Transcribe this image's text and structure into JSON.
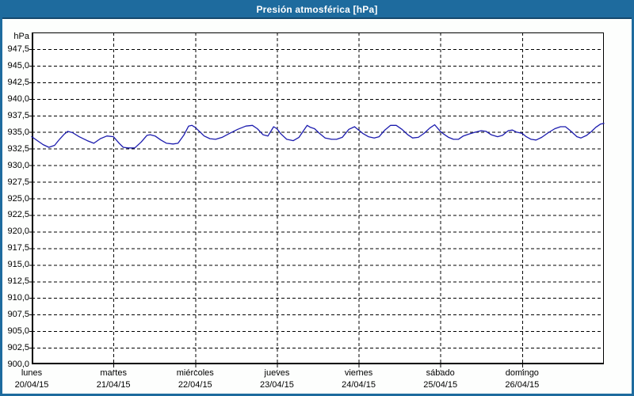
{
  "header": {
    "title": "Presión atmosférica [hPa]"
  },
  "colors": {
    "frame_blue": "#1e6b9e",
    "frame_dark_blue": "#15486d",
    "line_blue": "#1c1cae",
    "grid": "#000000",
    "plot_background": "#ffffff",
    "window_background": "#fdfefd",
    "title_text": "#ffffff"
  },
  "chart_data": {
    "type": "line",
    "title": "Presión atmosférica [hPa]",
    "ylabel": "hPa",
    "xlabel": "",
    "ylim": [
      900,
      950
    ],
    "ytick_step": 2.5,
    "grid": true,
    "grid_style": "dashed",
    "legend": false,
    "decimal_separator": ",",
    "yticks": [
      {
        "v": 947.5,
        "label": "947,5"
      },
      {
        "v": 945.0,
        "label": "945,0"
      },
      {
        "v": 942.5,
        "label": "942,5"
      },
      {
        "v": 940.0,
        "label": "940,0"
      },
      {
        "v": 937.5,
        "label": "937,5"
      },
      {
        "v": 935.0,
        "label": "935,0"
      },
      {
        "v": 932.5,
        "label": "932,5"
      },
      {
        "v": 930.0,
        "label": "930,0"
      },
      {
        "v": 927.5,
        "label": "927,5"
      },
      {
        "v": 925.0,
        "label": "925,0"
      },
      {
        "v": 922.5,
        "label": "922,5"
      },
      {
        "v": 920.0,
        "label": "920,0"
      },
      {
        "v": 917.5,
        "label": "917,5"
      },
      {
        "v": 915.0,
        "label": "915,0"
      },
      {
        "v": 912.5,
        "label": "912,5"
      },
      {
        "v": 910.0,
        "label": "910,0"
      },
      {
        "v": 907.5,
        "label": "907,5"
      },
      {
        "v": 905.0,
        "label": "905,0"
      },
      {
        "v": 902.5,
        "label": "902,5"
      },
      {
        "v": 900.0,
        "label": "900,0"
      }
    ],
    "xticks": [
      {
        "day": "lunes",
        "date": "20/04/15"
      },
      {
        "day": "martes",
        "date": "21/04/15"
      },
      {
        "day": "miércoles",
        "date": "22/04/15"
      },
      {
        "day": "jueves",
        "date": "23/04/15"
      },
      {
        "day": "viernes",
        "date": "24/04/15"
      },
      {
        "day": "sábado",
        "date": "25/04/15"
      },
      {
        "day": "domingo",
        "date": "26/04/15"
      }
    ],
    "x_span_days": 7,
    "series": [
      {
        "name": "Presión atmosférica",
        "color": "#1c1cae",
        "x_unit": "days_from_2015-04-20",
        "points": [
          [
            0.0,
            934.3
          ],
          [
            0.07,
            933.7
          ],
          [
            0.14,
            933.1
          ],
          [
            0.21,
            932.7
          ],
          [
            0.28,
            933.0
          ],
          [
            0.34,
            933.9
          ],
          [
            0.4,
            934.7
          ],
          [
            0.44,
            935.1
          ],
          [
            0.5,
            934.9
          ],
          [
            0.58,
            934.3
          ],
          [
            0.68,
            933.7
          ],
          [
            0.76,
            933.3
          ],
          [
            0.84,
            934.0
          ],
          [
            0.92,
            934.4
          ],
          [
            1.0,
            934.3
          ],
          [
            1.07,
            933.3
          ],
          [
            1.12,
            932.7
          ],
          [
            1.18,
            932.6
          ],
          [
            1.26,
            932.6
          ],
          [
            1.34,
            933.5
          ],
          [
            1.41,
            934.5
          ],
          [
            1.45,
            934.6
          ],
          [
            1.51,
            934.4
          ],
          [
            1.58,
            933.8
          ],
          [
            1.65,
            933.3
          ],
          [
            1.73,
            933.2
          ],
          [
            1.79,
            933.3
          ],
          [
            1.86,
            934.5
          ],
          [
            1.92,
            935.9
          ],
          [
            1.96,
            936.0
          ],
          [
            2.0,
            935.7
          ],
          [
            2.06,
            935.0
          ],
          [
            2.11,
            934.4
          ],
          [
            2.18,
            934.0
          ],
          [
            2.25,
            933.9
          ],
          [
            2.33,
            934.2
          ],
          [
            2.42,
            934.8
          ],
          [
            2.52,
            935.4
          ],
          [
            2.62,
            935.9
          ],
          [
            2.7,
            936.0
          ],
          [
            2.76,
            935.5
          ],
          [
            2.83,
            934.6
          ],
          [
            2.89,
            934.4
          ],
          [
            2.96,
            935.8
          ],
          [
            3.0,
            935.5
          ],
          [
            3.05,
            934.7
          ],
          [
            3.12,
            933.9
          ],
          [
            3.2,
            933.7
          ],
          [
            3.27,
            934.2
          ],
          [
            3.33,
            935.3
          ],
          [
            3.37,
            936.0
          ],
          [
            3.41,
            935.7
          ],
          [
            3.46,
            935.5
          ],
          [
            3.52,
            934.8
          ],
          [
            3.59,
            934.1
          ],
          [
            3.67,
            933.9
          ],
          [
            3.73,
            933.9
          ],
          [
            3.8,
            934.2
          ],
          [
            3.88,
            935.4
          ],
          [
            3.95,
            935.8
          ],
          [
            4.0,
            935.3
          ],
          [
            4.05,
            934.8
          ],
          [
            4.12,
            934.3
          ],
          [
            4.19,
            934.1
          ],
          [
            4.25,
            934.3
          ],
          [
            4.32,
            935.3
          ],
          [
            4.39,
            936.0
          ],
          [
            4.46,
            936.0
          ],
          [
            4.53,
            935.4
          ],
          [
            4.6,
            934.6
          ],
          [
            4.66,
            934.1
          ],
          [
            4.73,
            934.2
          ],
          [
            4.8,
            934.8
          ],
          [
            4.87,
            935.6
          ],
          [
            4.93,
            936.1
          ],
          [
            5.0,
            935.1
          ],
          [
            5.04,
            934.7
          ],
          [
            5.1,
            934.2
          ],
          [
            5.16,
            933.9
          ],
          [
            5.22,
            933.9
          ],
          [
            5.28,
            934.4
          ],
          [
            5.35,
            934.7
          ],
          [
            5.43,
            935.0
          ],
          [
            5.5,
            935.2
          ],
          [
            5.56,
            935.1
          ],
          [
            5.62,
            934.6
          ],
          [
            5.7,
            934.3
          ],
          [
            5.76,
            934.5
          ],
          [
            5.83,
            935.2
          ],
          [
            5.88,
            935.3
          ],
          [
            5.93,
            935.0
          ],
          [
            6.0,
            934.8
          ],
          [
            6.05,
            934.3
          ],
          [
            6.11,
            933.9
          ],
          [
            6.17,
            933.8
          ],
          [
            6.24,
            934.2
          ],
          [
            6.32,
            934.9
          ],
          [
            6.4,
            935.5
          ],
          [
            6.47,
            935.8
          ],
          [
            6.53,
            935.8
          ],
          [
            6.59,
            935.2
          ],
          [
            6.67,
            934.3
          ],
          [
            6.72,
            934.1
          ],
          [
            6.79,
            934.5
          ],
          [
            6.85,
            935.1
          ],
          [
            6.9,
            935.7
          ],
          [
            6.96,
            936.2
          ],
          [
            7.0,
            936.3
          ]
        ]
      }
    ]
  }
}
